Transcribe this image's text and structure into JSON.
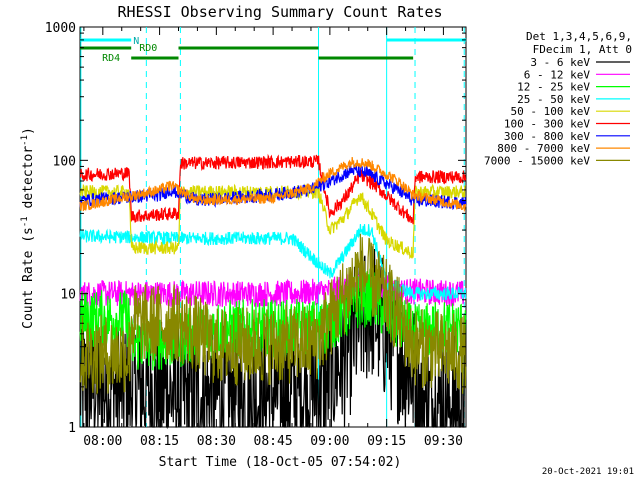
{
  "chart_data": {
    "type": "line",
    "title": "RHESSI Observing Summary Count Rates",
    "xlabel": "Start Time (18-Oct-05 07:54:02)",
    "ylabel_main": "Count Rate (s",
    "ylabel_sup1": "-1",
    "ylabel_mid": " detector",
    "ylabel_sup2": "-1",
    "ylabel_end": ")",
    "yscale": "log",
    "ylim": [
      1,
      1000
    ],
    "xlim_minutes": [
      -6.03,
      95.97
    ],
    "x_ticks": [
      {
        "t": 0,
        "label": "08:00"
      },
      {
        "t": 15,
        "label": "08:15"
      },
      {
        "t": 30,
        "label": "08:30"
      },
      {
        "t": 45,
        "label": "08:45"
      },
      {
        "t": 60,
        "label": "09:00"
      },
      {
        "t": 75,
        "label": "09:15"
      },
      {
        "t": 90,
        "label": "09:30"
      }
    ],
    "y_ticks": [
      {
        "v": 1,
        "label": "1"
      },
      {
        "v": 10,
        "label": "10"
      },
      {
        "v": 100,
        "label": "100"
      },
      {
        "v": 1000,
        "label": "1000"
      }
    ],
    "legend_header": [
      "Det 1,3,4,5,6,9,",
      "FDecim 1, Att 0"
    ],
    "legend_position": "right",
    "series": [
      {
        "name": "3 - 6 keV",
        "color": "#000000",
        "points": [
          [
            -6,
            2.0
          ],
          [
            7,
            2.0
          ],
          [
            14,
            1.9
          ],
          [
            20,
            1.7
          ],
          [
            40,
            1.7
          ],
          [
            58,
            2.0
          ],
          [
            64,
            3.5
          ],
          [
            68,
            6.0
          ],
          [
            71,
            7.8
          ],
          [
            75,
            5.0
          ],
          [
            82,
            2.5
          ],
          [
            84,
            1.5
          ],
          [
            96,
            1.5
          ]
        ]
      },
      {
        "name": "6 - 12 keV",
        "color": "#ff00ff",
        "points": [
          [
            -6,
            10
          ],
          [
            20,
            10
          ],
          [
            50,
            10
          ],
          [
            60,
            10.5
          ],
          [
            70,
            12
          ],
          [
            78,
            10.5
          ],
          [
            96,
            10
          ]
        ]
      },
      {
        "name": "12 - 25 keV",
        "color": "#00ff00",
        "points": [
          [
            -6,
            6.5
          ],
          [
            7,
            6.5
          ],
          [
            7.5,
            4.2
          ],
          [
            20,
            4.5
          ],
          [
            30,
            5.5
          ],
          [
            58,
            5.5
          ],
          [
            64,
            7.5
          ],
          [
            68,
            9.0
          ],
          [
            71,
            9.5
          ],
          [
            75,
            7.0
          ],
          [
            82,
            5.0
          ],
          [
            90,
            5.5
          ],
          [
            96,
            5.5
          ]
        ]
      },
      {
        "name": "25 - 50 keV",
        "color": "#00ffff",
        "points": [
          [
            -6,
            27
          ],
          [
            20,
            26
          ],
          [
            50,
            26
          ],
          [
            60,
            14
          ],
          [
            64,
            20
          ],
          [
            68,
            30
          ],
          [
            71,
            30
          ],
          [
            75,
            12
          ],
          [
            82,
            10
          ],
          [
            96,
            10
          ]
        ]
      },
      {
        "name": "50 - 100 keV",
        "color": "#d8d800",
        "points": [
          [
            -6,
            58
          ],
          [
            7,
            58
          ],
          [
            7.5,
            22
          ],
          [
            20,
            22
          ],
          [
            20.5,
            58
          ],
          [
            57,
            58
          ],
          [
            60,
            30
          ],
          [
            64,
            38
          ],
          [
            68,
            55
          ],
          [
            71,
            40
          ],
          [
            75,
            25
          ],
          [
            82,
            20
          ],
          [
            82.5,
            58
          ],
          [
            96,
            58
          ]
        ]
      },
      {
        "name": "100 - 300 keV",
        "color": "#ff0000",
        "points": [
          [
            -6,
            78
          ],
          [
            7,
            80
          ],
          [
            7.5,
            38
          ],
          [
            20,
            40
          ],
          [
            20.5,
            95
          ],
          [
            57,
            98
          ],
          [
            60,
            40
          ],
          [
            64,
            52
          ],
          [
            68,
            78
          ],
          [
            72,
            65
          ],
          [
            78,
            45
          ],
          [
            82,
            35
          ],
          [
            82.5,
            75
          ],
          [
            96,
            75
          ]
        ]
      },
      {
        "name": "300 - 800 keV",
        "color": "#0000ff",
        "points": [
          [
            -6,
            50
          ],
          [
            15,
            55
          ],
          [
            18,
            60
          ],
          [
            25,
            50
          ],
          [
            45,
            55
          ],
          [
            55,
            60
          ],
          [
            60,
            70
          ],
          [
            66,
            85
          ],
          [
            70,
            80
          ],
          [
            78,
            60
          ],
          [
            82,
            50
          ],
          [
            96,
            48
          ]
        ]
      },
      {
        "name": "800 - 7000 keV",
        "color": "#ff8800",
        "points": [
          [
            -6,
            45
          ],
          [
            15,
            60
          ],
          [
            18,
            65
          ],
          [
            25,
            50
          ],
          [
            45,
            52
          ],
          [
            55,
            62
          ],
          [
            60,
            80
          ],
          [
            66,
            98
          ],
          [
            70,
            95
          ],
          [
            78,
            70
          ],
          [
            82,
            55
          ],
          [
            96,
            45
          ]
        ]
      },
      {
        "name": "7000 - 15000 keV",
        "color": "#888800",
        "points": [
          [
            -6,
            3.5
          ],
          [
            7,
            3.5
          ],
          [
            7.5,
            6.0
          ],
          [
            20,
            6.0
          ],
          [
            30,
            4.0
          ],
          [
            56,
            4.2
          ],
          [
            62,
            8.0
          ],
          [
            68,
            15
          ],
          [
            72,
            12
          ],
          [
            78,
            7.0
          ],
          [
            82,
            4.0
          ],
          [
            96,
            3.5
          ]
        ]
      }
    ],
    "state_bars": [
      {
        "name": "N",
        "color": "#00ffff",
        "segments": [
          [
            -6,
            7.5
          ],
          [
            75,
            96
          ]
        ],
        "level": 1
      },
      {
        "name": "RD0",
        "color": "#008800",
        "segments": [
          [
            -6,
            7.5
          ],
          [
            20,
            57
          ]
        ],
        "level": 2
      },
      {
        "name": "RD4",
        "color": "#008800",
        "segments": [
          [
            7.5,
            20
          ],
          [
            57,
            82
          ]
        ],
        "level": 3
      }
    ],
    "vertical_lines_solid_cyan": [
      -5.8,
      57,
      75
    ],
    "vertical_lines_dashed_cyan": [
      11.5,
      20.5,
      82.5,
      95.5
    ],
    "grid": false,
    "footer_date": "20-Oct-2021 19:01"
  }
}
